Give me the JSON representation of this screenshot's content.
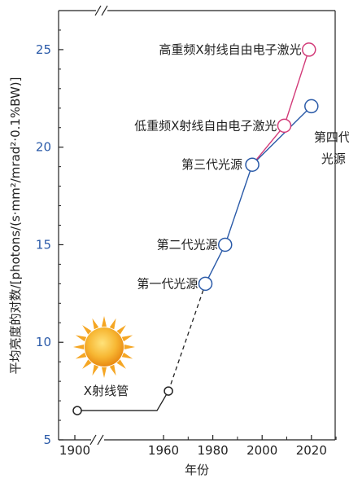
{
  "chart_data": {
    "type": "line",
    "xlabel": "年份",
    "ylabel": "平均亮度的对数/[photons/(s·mm²/mrad²·0.1%BW)]",
    "ylim": [
      5,
      27
    ],
    "xlim": [
      1890,
      2030
    ],
    "x_axis_break": "between 1900 and 1960",
    "x_ticks": [
      {
        "value": 1900,
        "label": "1900"
      },
      {
        "value": 1960,
        "label": "1960"
      },
      {
        "value": 1980,
        "label": "1980"
      },
      {
        "value": 2000,
        "label": "2000"
      },
      {
        "value": 2020,
        "label": "2020"
      }
    ],
    "y_ticks": [
      {
        "value": 5,
        "label": "5"
      },
      {
        "value": 10,
        "label": "10"
      },
      {
        "value": 15,
        "label": "15"
      },
      {
        "value": 20,
        "label": "20"
      },
      {
        "value": 25,
        "label": "25"
      }
    ],
    "series": [
      {
        "color": "#2a5aa8",
        "points": [
          {
            "x": 1905,
            "y": 6.5,
            "label": "X射线管"
          },
          {
            "x": 1962,
            "y": 7.5,
            "label": ""
          },
          {
            "x": 1977,
            "y": 13.0,
            "label": "第一代光源"
          },
          {
            "x": 1985,
            "y": 15.0,
            "label": "第二代光源"
          },
          {
            "x": 1996,
            "y": 19.1,
            "label": "第三代光源"
          },
          {
            "x": 2020,
            "y": 22.1,
            "label": "第四代光源"
          }
        ]
      },
      {
        "color": "#d23a78",
        "points": [
          {
            "x": 1996,
            "y": 19.1,
            "label": ""
          },
          {
            "x": 2009,
            "y": 21.1,
            "label": "低重频X射线自由电子激光"
          },
          {
            "x": 2019,
            "y": 25.0,
            "label": "高重频X射线自由电子激光"
          }
        ]
      }
    ],
    "annotations": [
      {
        "text": "X射线管",
        "x": 1918,
        "y": 7.5
      },
      {
        "text": "第一代光源",
        "x": 1974,
        "y": 13.0
      },
      {
        "text": "第二代光源",
        "x": 1982,
        "y": 15.0
      },
      {
        "text": "第三代光源",
        "x": 1992,
        "y": 19.1
      },
      {
        "text": "低重频X射线自由电子激光",
        "x": 2006,
        "y": 21.1
      },
      {
        "text": "高重频X射线自由电子激光",
        "x": 2016,
        "y": 25.0
      },
      {
        "text": "第四代",
        "x": 2021,
        "y": 20.5
      },
      {
        "text": "光源",
        "x": 2024,
        "y": 19.4
      }
    ],
    "sun_icon": "sun-icon",
    "grid": false
  }
}
